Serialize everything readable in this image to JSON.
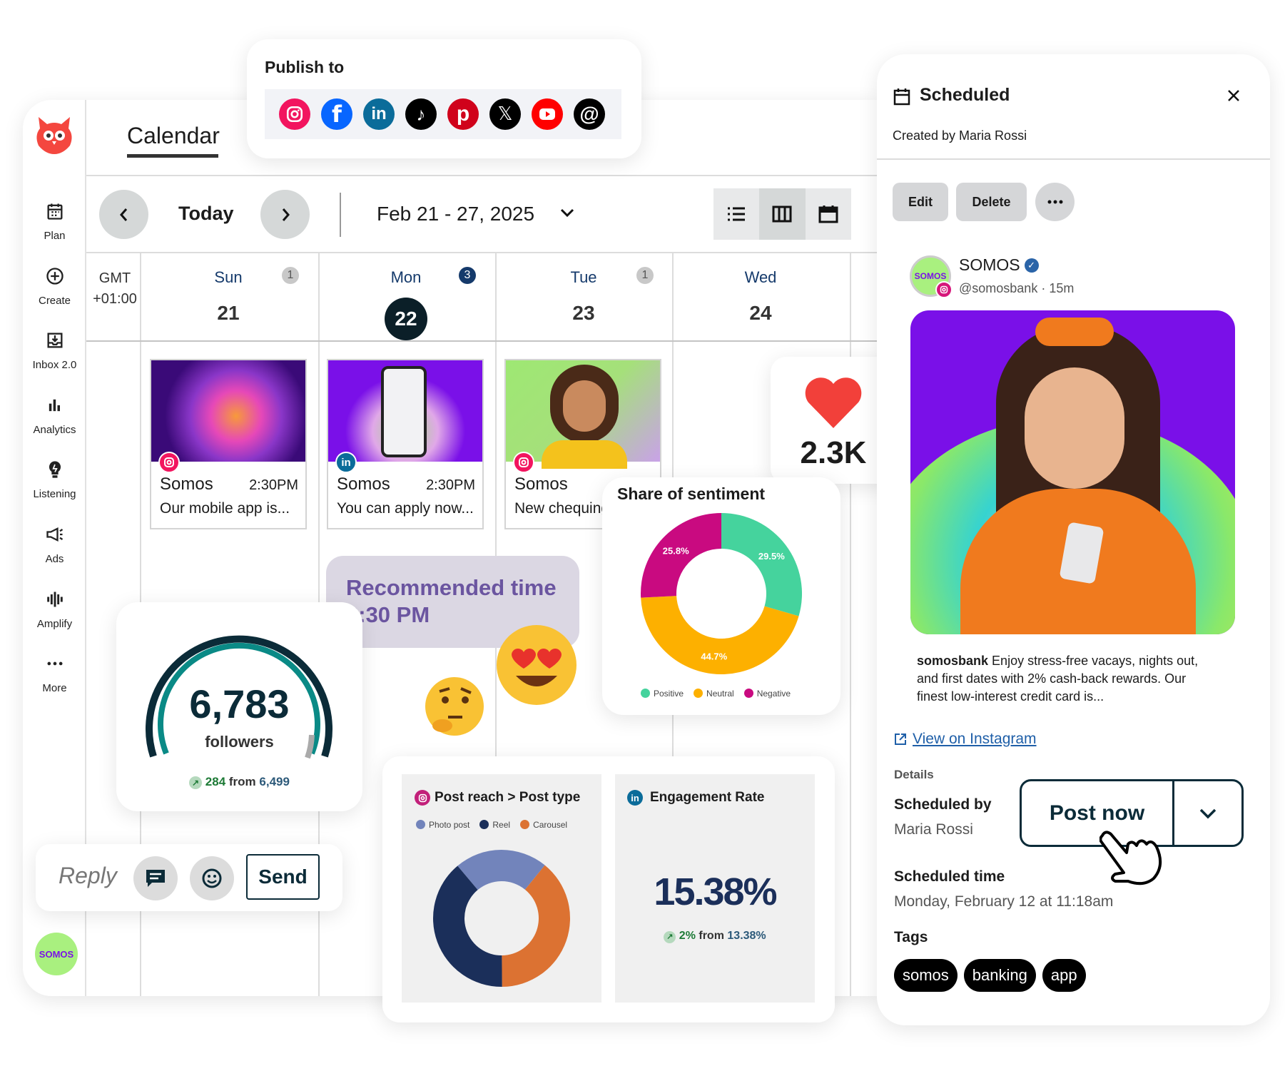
{
  "publish": {
    "title": "Publish to",
    "networks": [
      "instagram-icon",
      "facebook-icon",
      "linkedin-icon",
      "tiktok-icon",
      "pinterest-icon",
      "x-icon",
      "youtube-icon",
      "threads-icon"
    ]
  },
  "calendar": {
    "tab": "Calendar",
    "today": "Today",
    "range": "Feb 21 - 27, 2025",
    "timezone": [
      "GMT",
      "+01:00"
    ],
    "days": [
      {
        "name": "Sun",
        "num": "21",
        "count": "1"
      },
      {
        "name": "Mon",
        "num": "22",
        "count": "3"
      },
      {
        "name": "Tue",
        "num": "23",
        "count": "1"
      },
      {
        "name": "Wed",
        "num": "24"
      }
    ],
    "posts": [
      {
        "name": "Somos",
        "time": "2:30PM",
        "text": "Our mobile app is...",
        "network": "instagram"
      },
      {
        "name": "Somos",
        "time": "2:30PM",
        "text": "You can apply now...",
        "network": "linkedin"
      },
      {
        "name": "Somos",
        "time": "2:30PM",
        "text": "New chequing",
        "network": "instagram"
      }
    ]
  },
  "sidebar": {
    "items": [
      {
        "label": "Plan",
        "icon": "calendar-icon"
      },
      {
        "label": "Create",
        "icon": "plus-circle-icon"
      },
      {
        "label": "Inbox 2.0",
        "icon": "inbox-icon"
      },
      {
        "label": "Analytics",
        "icon": "bar-chart-icon"
      },
      {
        "label": "Listening",
        "icon": "lightbulb-icon"
      },
      {
        "label": "Ads",
        "icon": "megaphone-icon"
      },
      {
        "label": "Amplify",
        "icon": "amplify-icon"
      },
      {
        "label": "More",
        "icon": "more-icon"
      }
    ],
    "avatar": "SOMOS"
  },
  "likes": {
    "value": "2.3K"
  },
  "recommended": {
    "title": "Recommended time",
    "time": "2:30 PM"
  },
  "followers": {
    "value": "6,783",
    "label": "followers",
    "change": "284",
    "from_label": "from",
    "from": "6,499"
  },
  "reply": {
    "placeholder": "Reply",
    "send": "Send"
  },
  "chart_data": [
    {
      "type": "pie",
      "title": "Share of sentiment",
      "categories": [
        "Positive",
        "Neutral",
        "Negative"
      ],
      "values": [
        29.5,
        44.7,
        25.8
      ],
      "labels": [
        "29.5%",
        "44.7%",
        "25.8%"
      ],
      "colors": [
        "#45d39d",
        "#fdb000",
        "#c90a80"
      ],
      "legend": "bottom"
    },
    {
      "type": "pie",
      "title": "Post reach > Post type",
      "categories": [
        "Photo post",
        "Reel",
        "Carousel"
      ],
      "values": [
        22,
        39,
        39
      ],
      "colors": [
        "#7284bb",
        "#1b2f5a",
        "#dc7232"
      ],
      "legend": "top"
    }
  ],
  "engagement": {
    "title": "Engagement Rate",
    "value": "15.38%",
    "change": "2%",
    "from_label": "from",
    "from": "13.38%"
  },
  "panel": {
    "title": "Scheduled",
    "created_by": "Created by Maria Rossi",
    "edit": "Edit",
    "delete": "Delete",
    "account": "SOMOS",
    "handle": "@somosbank · 15m",
    "caption_user": "somosbank",
    "caption": "Enjoy stress-free vacays, nights out, and first dates with 2% cash-back rewards. Our finest low-interest credit card is...",
    "view_link": "View on Instagram",
    "details": "Details",
    "scheduled_by_label": "Scheduled by",
    "scheduled_by": "Maria Rossi",
    "post_now": "Post now",
    "scheduled_time_label": "Scheduled time",
    "scheduled_time": "Monday, February 12 at 11:18am",
    "tags_label": "Tags",
    "tags": [
      "somos",
      "banking",
      "app"
    ]
  }
}
